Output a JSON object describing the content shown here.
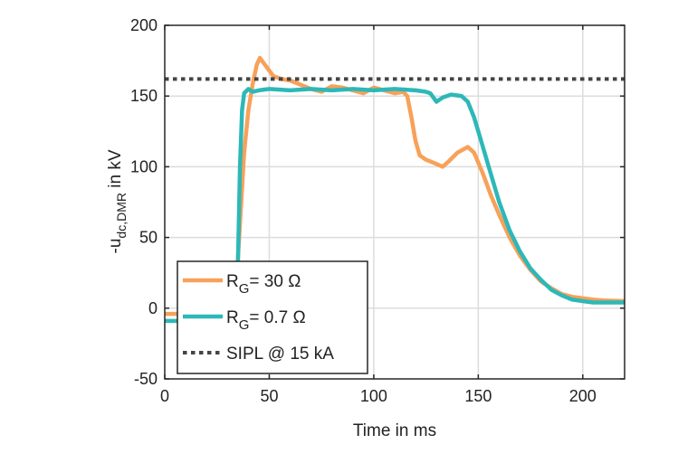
{
  "chart_data": {
    "type": "line",
    "xlabel": "Time in ms",
    "ylabel": {
      "main": "-u",
      "sub": "dc,DMR",
      "suffix": " in kV"
    },
    "xlim": [
      0,
      220
    ],
    "ylim": [
      -50,
      200
    ],
    "xticks": [
      0,
      50,
      100,
      150,
      200
    ],
    "yticks": [
      -50,
      0,
      50,
      100,
      150,
      200
    ],
    "grid": true,
    "legend_position": "bottom-left",
    "series": [
      {
        "name": {
          "main": "R",
          "sub": "G",
          "suffix": "= 30 Ω"
        },
        "color": "#F7A15A",
        "x": [
          0,
          32,
          34,
          36,
          38,
          40,
          42,
          44,
          45.5,
          48,
          52,
          56,
          60,
          65,
          70,
          75,
          80,
          85,
          90,
          95,
          100,
          105,
          110,
          114,
          116,
          118,
          120,
          122,
          125,
          130,
          133,
          136,
          140,
          145,
          148,
          152,
          156,
          160,
          165,
          170,
          175,
          180,
          185,
          190,
          195,
          200,
          205,
          210,
          220
        ],
        "y": [
          -4,
          -4,
          10,
          60,
          110,
          140,
          158,
          172,
          177,
          172,
          164,
          162,
          161,
          158,
          155,
          153,
          157,
          156,
          154,
          152,
          156,
          154,
          152,
          153,
          150,
          135,
          118,
          108,
          105,
          102,
          100,
          104,
          110,
          114,
          110,
          96,
          80,
          66,
          50,
          37,
          27,
          19,
          14,
          10,
          8,
          7,
          6,
          5.5,
          5
        ]
      },
      {
        "name": {
          "main": "R",
          "sub": "G",
          "suffix": "= 0.7 Ω"
        },
        "color": "#2DB8B8",
        "x": [
          0,
          5,
          34,
          35,
          36,
          37,
          38,
          40,
          42,
          45,
          50,
          60,
          70,
          80,
          90,
          100,
          110,
          120,
          125,
          127,
          130,
          133,
          137,
          142,
          145,
          148,
          152,
          156,
          160,
          165,
          170,
          175,
          180,
          185,
          190,
          195,
          200,
          205,
          210,
          220
        ],
        "y": [
          -9,
          -9,
          -9,
          30,
          100,
          140,
          152,
          155,
          153,
          154,
          155,
          154,
          155,
          154,
          155,
          154,
          155,
          154,
          153,
          152,
          146,
          149,
          151,
          150,
          146,
          135,
          115,
          95,
          75,
          55,
          40,
          28,
          20,
          13,
          9,
          6,
          5,
          4,
          4,
          4
        ]
      },
      {
        "name": {
          "main": "SIPL @ 15 kA",
          "sub": "",
          "suffix": ""
        },
        "color": "#444444",
        "dashed": true,
        "x": [
          0,
          220
        ],
        "y": [
          162,
          162
        ]
      }
    ]
  }
}
